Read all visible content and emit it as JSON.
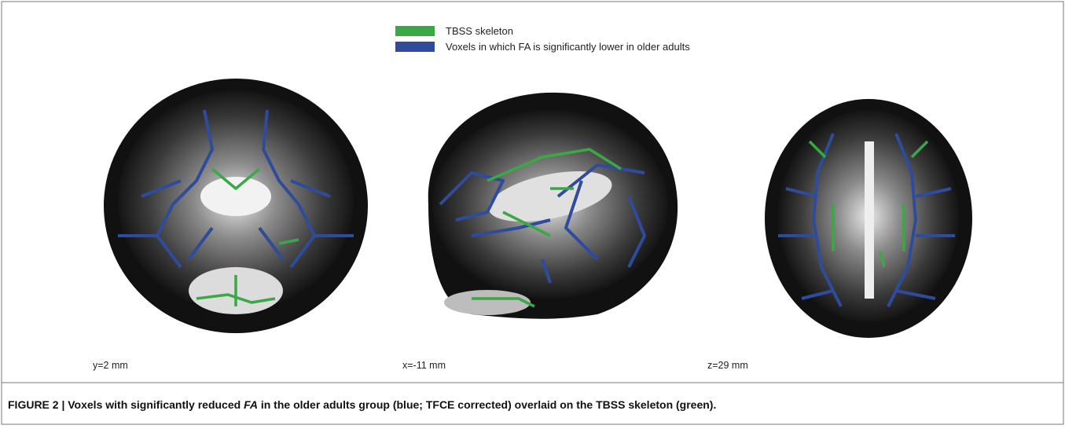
{
  "legend": {
    "items": [
      {
        "label": "TBSS skeleton",
        "color": "#3aa845"
      },
      {
        "label": "Voxels in which FA is significantly lower in older adults",
        "color": "#2f4b9c"
      }
    ]
  },
  "panels": [
    {
      "label": "y=2 mm"
    },
    {
      "label": "x=-11 mm"
    },
    {
      "label": "z=29 mm"
    }
  ],
  "caption": {
    "text_before": "FIGURE 2 | Voxels with significantly reduced ",
    "italic": "FA",
    "text_after": " in the older adults group (blue; TFCE corrected) overlaid on the TBSS skeleton (green)."
  }
}
